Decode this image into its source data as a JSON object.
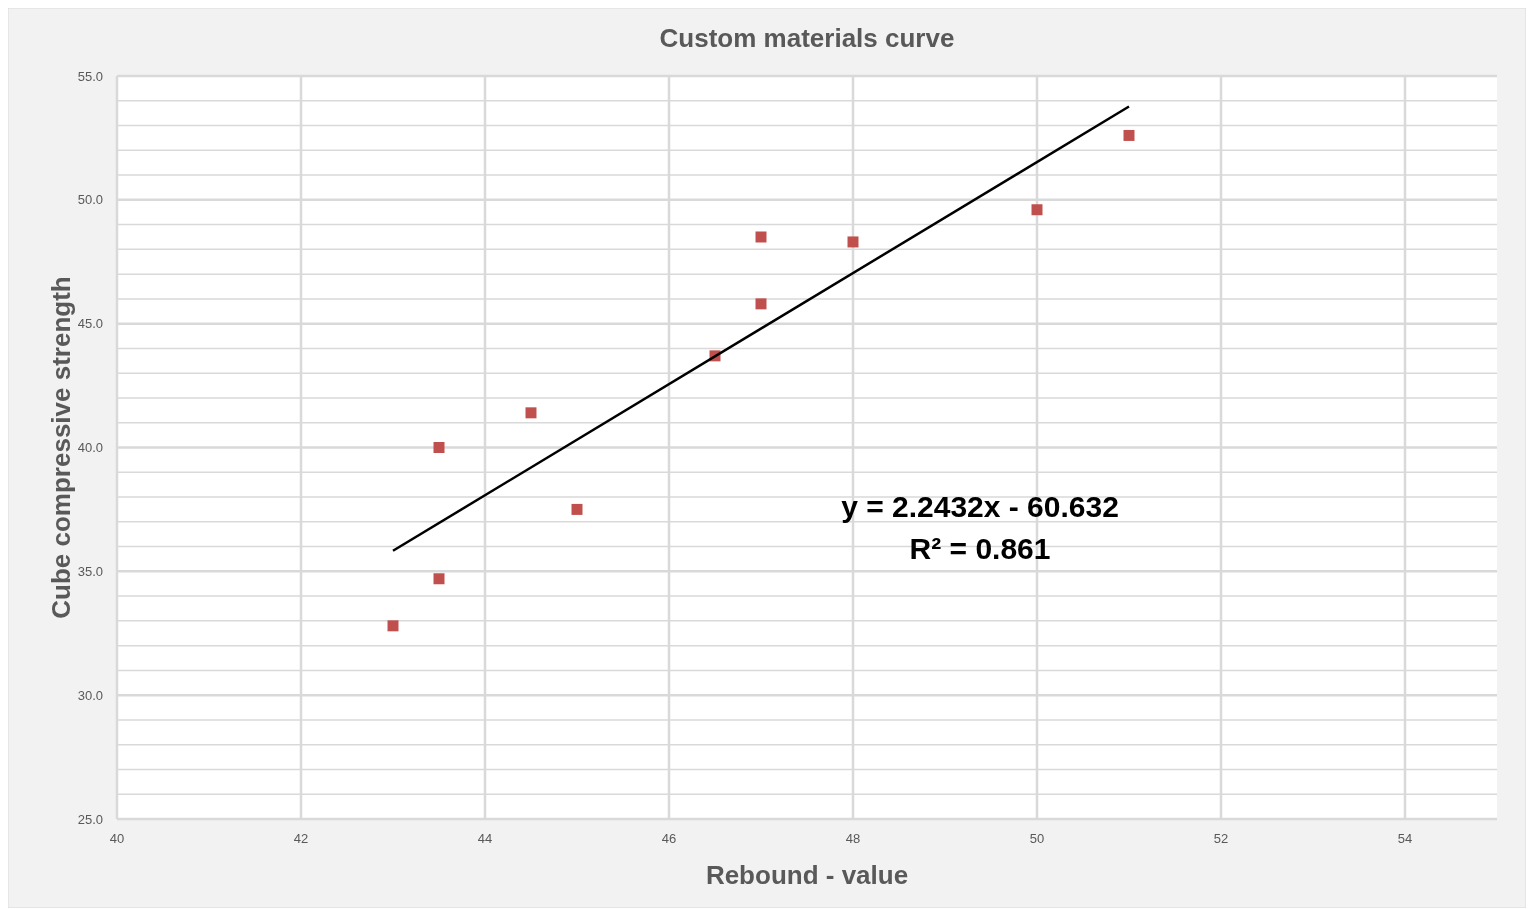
{
  "chart_data": {
    "type": "scatter",
    "title": "Custom materials curve",
    "xlabel": "Rebound - value",
    "ylabel": "Cube compressive strength",
    "xlim": [
      40,
      55
    ],
    "xticks": [
      40,
      42,
      44,
      46,
      48,
      50,
      52,
      54
    ],
    "ylim": [
      25,
      55
    ],
    "yticks": [
      {
        "value": 25,
        "label": "25.0"
      },
      {
        "value": 26,
        "label": null
      },
      {
        "value": 27,
        "label": null
      },
      {
        "value": 28,
        "label": null
      },
      {
        "value": 29,
        "label": null
      },
      {
        "value": 30,
        "label": "30.0"
      },
      {
        "value": 31,
        "label": null
      },
      {
        "value": 32,
        "label": null
      },
      {
        "value": 33,
        "label": null
      },
      {
        "value": 34,
        "label": null
      },
      {
        "value": 35,
        "label": "35.0"
      },
      {
        "value": 36,
        "label": null
      },
      {
        "value": 37,
        "label": null
      },
      {
        "value": 38,
        "label": null
      },
      {
        "value": 39,
        "label": null
      },
      {
        "value": 40,
        "label": "40.0"
      },
      {
        "value": 41,
        "label": null
      },
      {
        "value": 42,
        "label": null
      },
      {
        "value": 43,
        "label": null
      },
      {
        "value": 44,
        "label": null
      },
      {
        "value": 45,
        "label": "45.0"
      },
      {
        "value": 46,
        "label": null
      },
      {
        "value": 47,
        "label": null
      },
      {
        "value": 48,
        "label": null
      },
      {
        "value": 49,
        "label": null
      },
      {
        "value": 50,
        "label": "50.0"
      },
      {
        "value": 51,
        "label": null
      },
      {
        "value": 52,
        "label": null
      },
      {
        "value": 53,
        "label": null
      },
      {
        "value": 54,
        "label": null
      },
      {
        "value": 55,
        "label": "55.0"
      }
    ],
    "grid": true,
    "series": [
      {
        "marker": "square",
        "color": "#c0504d",
        "x": [
          43,
          43.5,
          43.5,
          44.5,
          45,
          46.5,
          47,
          47,
          48,
          50,
          51
        ],
        "values": [
          32.8,
          34.7,
          40.0,
          41.4,
          37.5,
          43.7,
          45.8,
          48.5,
          48.3,
          49.6,
          52.6
        ]
      },
      {
        "type": "line",
        "marker": "none",
        "color": "#000000",
        "x": [
          43,
          51
        ],
        "values": [
          35.83,
          53.77
        ]
      }
    ],
    "annotations": [
      "y = 2.2432x - 60.632",
      "R² = 0.861"
    ]
  }
}
